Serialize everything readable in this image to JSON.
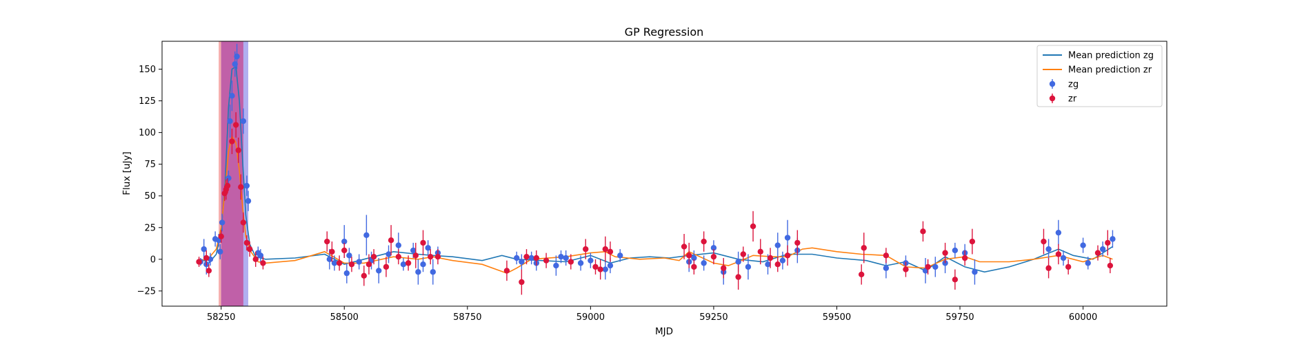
{
  "chart_data": {
    "type": "scatter",
    "title": "GP Regression",
    "xlabel": "MJD",
    "ylabel": "Flux [uJy]",
    "xlim": [
      58130,
      60170
    ],
    "ylim": [
      -37,
      172
    ],
    "xticks": [
      58250,
      58500,
      58750,
      59000,
      59250,
      59500,
      59750,
      60000
    ],
    "yticks": [
      -25,
      0,
      25,
      50,
      75,
      100,
      125,
      150
    ],
    "grid": false,
    "legend_position": "top-right",
    "colors": {
      "zg_line": "#1f77b4",
      "zr_line": "#ff7f0e",
      "zg_points": "#4169e1",
      "zr_points": "#dc143c",
      "band_zr": "#f4a3a3",
      "band_zg": "#a9a6ee",
      "band_overlap": "#c060a8"
    },
    "shaded_regions": [
      {
        "band": "zr",
        "x0": 58245,
        "x1": 58295
      },
      {
        "band": "zg",
        "x0": 58250,
        "x1": 58305
      }
    ],
    "legend": [
      "Mean prediction zg",
      "Mean prediction zr",
      "zg",
      "zr"
    ],
    "series": [
      {
        "name": "Mean prediction zg",
        "kind": "line",
        "points": [
          [
            58210,
            0
          ],
          [
            58225,
            -3
          ],
          [
            58240,
            4
          ],
          [
            58250,
            22
          ],
          [
            58258,
            60
          ],
          [
            58265,
            120
          ],
          [
            58272,
            150
          ],
          [
            58280,
            152
          ],
          [
            58287,
            125
          ],
          [
            58294,
            75
          ],
          [
            58300,
            35
          ],
          [
            58308,
            12
          ],
          [
            58320,
            2
          ],
          [
            58340,
            0
          ],
          [
            58400,
            1
          ],
          [
            58460,
            4
          ],
          [
            58500,
            -4
          ],
          [
            58540,
            0
          ],
          [
            58600,
            6
          ],
          [
            58650,
            4
          ],
          [
            58680,
            3
          ],
          [
            58720,
            2
          ],
          [
            58780,
            -1
          ],
          [
            58820,
            3
          ],
          [
            58850,
            0
          ],
          [
            58900,
            -1
          ],
          [
            58950,
            -2
          ],
          [
            59000,
            3
          ],
          [
            59040,
            -3
          ],
          [
            59080,
            1
          ],
          [
            59120,
            2
          ],
          [
            59160,
            1
          ],
          [
            59200,
            3
          ],
          [
            59250,
            5
          ],
          [
            59300,
            0
          ],
          [
            59350,
            -2
          ],
          [
            59400,
            4
          ],
          [
            59450,
            4
          ],
          [
            59500,
            1
          ],
          [
            59560,
            -1
          ],
          [
            59600,
            -5
          ],
          [
            59640,
            -2
          ],
          [
            59680,
            -9
          ],
          [
            59720,
            2
          ],
          [
            59760,
            -6
          ],
          [
            59800,
            -10
          ],
          [
            59850,
            -6
          ],
          [
            59900,
            0
          ],
          [
            59950,
            8
          ],
          [
            59980,
            3
          ],
          [
            60020,
            0
          ],
          [
            60060,
            10
          ]
        ]
      },
      {
        "name": "Mean prediction zr",
        "kind": "line",
        "points": [
          [
            58210,
            -1
          ],
          [
            58225,
            1
          ],
          [
            58240,
            8
          ],
          [
            58250,
            25
          ],
          [
            58258,
            55
          ],
          [
            58265,
            85
          ],
          [
            58272,
            97
          ],
          [
            58280,
            92
          ],
          [
            58287,
            70
          ],
          [
            58294,
            40
          ],
          [
            58300,
            18
          ],
          [
            58310,
            6
          ],
          [
            58325,
            -2
          ],
          [
            58340,
            -3
          ],
          [
            58400,
            -1
          ],
          [
            58460,
            6
          ],
          [
            58500,
            -3
          ],
          [
            58540,
            -3
          ],
          [
            58600,
            2
          ],
          [
            58650,
            0
          ],
          [
            58680,
            2
          ],
          [
            58720,
            -1
          ],
          [
            58780,
            -4
          ],
          [
            58830,
            -11
          ],
          [
            58850,
            -7
          ],
          [
            58880,
            0
          ],
          [
            58950,
            2
          ],
          [
            59000,
            5
          ],
          [
            59030,
            6
          ],
          [
            59050,
            2
          ],
          [
            59100,
            0
          ],
          [
            59150,
            1
          ],
          [
            59180,
            -1
          ],
          [
            59200,
            6
          ],
          [
            59250,
            -3
          ],
          [
            59280,
            -5
          ],
          [
            59300,
            -2
          ],
          [
            59330,
            3
          ],
          [
            59370,
            2
          ],
          [
            59400,
            2
          ],
          [
            59430,
            8
          ],
          [
            59450,
            9
          ],
          [
            59500,
            6
          ],
          [
            59550,
            4
          ],
          [
            59600,
            3
          ],
          [
            59640,
            -6
          ],
          [
            59680,
            -7
          ],
          [
            59720,
            0
          ],
          [
            59760,
            2
          ],
          [
            59790,
            -2
          ],
          [
            59850,
            -2
          ],
          [
            59900,
            0
          ],
          [
            59950,
            3
          ],
          [
            60000,
            -2
          ],
          [
            60040,
            3
          ],
          [
            60060,
            0
          ]
        ]
      },
      {
        "name": "zg",
        "kind": "errorbar",
        "points": [
          [
            58208,
            -2,
            3
          ],
          [
            58215,
            8,
            8
          ],
          [
            58220,
            -4,
            8
          ],
          [
            58228,
            0,
            5
          ],
          [
            58238,
            16,
            6
          ],
          [
            58245,
            15,
            5
          ],
          [
            58248,
            6,
            6
          ],
          [
            58252,
            29,
            7
          ],
          [
            58265,
            64,
            6
          ],
          [
            58268,
            109,
            13
          ],
          [
            58272,
            129,
            12
          ],
          [
            58278,
            154,
            10
          ],
          [
            58282,
            160,
            10
          ],
          [
            58295,
            109,
            10
          ],
          [
            58302,
            58,
            8
          ],
          [
            58305,
            46,
            8
          ],
          [
            58325,
            5,
            5
          ],
          [
            58330,
            3,
            5
          ],
          [
            58470,
            0,
            8
          ],
          [
            58480,
            -3,
            6
          ],
          [
            58500,
            14,
            13
          ],
          [
            58505,
            -11,
            8
          ],
          [
            58510,
            3,
            6
          ],
          [
            58530,
            -2,
            6
          ],
          [
            58545,
            19,
            16
          ],
          [
            58555,
            -1,
            7
          ],
          [
            58570,
            -9,
            10
          ],
          [
            58590,
            4,
            7
          ],
          [
            58610,
            11,
            10
          ],
          [
            58620,
            -4,
            5
          ],
          [
            58640,
            7,
            6
          ],
          [
            58650,
            -10,
            10
          ],
          [
            58660,
            -4,
            6
          ],
          [
            58670,
            9,
            6
          ],
          [
            58680,
            -10,
            10
          ],
          [
            58690,
            5,
            5
          ],
          [
            58850,
            1,
            5
          ],
          [
            58860,
            -2,
            6
          ],
          [
            58880,
            1,
            5
          ],
          [
            58890,
            -3,
            6
          ],
          [
            58930,
            -5,
            8
          ],
          [
            58940,
            2,
            5
          ],
          [
            58950,
            1,
            6
          ],
          [
            58980,
            -3,
            6
          ],
          [
            59000,
            -1,
            6
          ],
          [
            59030,
            -8,
            8
          ],
          [
            59040,
            -5,
            6
          ],
          [
            59060,
            3,
            5
          ],
          [
            59200,
            -2,
            8
          ],
          [
            59210,
            1,
            6
          ],
          [
            59230,
            -3,
            6
          ],
          [
            59250,
            9,
            6
          ],
          [
            59270,
            -10,
            10
          ],
          [
            59300,
            -2,
            8
          ],
          [
            59320,
            -6,
            10
          ],
          [
            59360,
            -4,
            8
          ],
          [
            59380,
            11,
            10
          ],
          [
            59390,
            -1,
            7
          ],
          [
            59400,
            17,
            14
          ],
          [
            59420,
            7,
            10
          ],
          [
            59600,
            -7,
            8
          ],
          [
            59640,
            -3,
            6
          ],
          [
            59680,
            -9,
            10
          ],
          [
            59700,
            -6,
            8
          ],
          [
            59720,
            -3,
            8
          ],
          [
            59740,
            7,
            6
          ],
          [
            59760,
            5,
            7
          ],
          [
            59780,
            -10,
            10
          ],
          [
            59930,
            8,
            8
          ],
          [
            59950,
            21,
            10
          ],
          [
            59960,
            1,
            6
          ],
          [
            60000,
            11,
            6
          ],
          [
            60010,
            -3,
            5
          ],
          [
            60040,
            8,
            6
          ],
          [
            60060,
            16,
            7
          ]
        ]
      },
      {
        "name": "zr",
        "kind": "errorbar",
        "points": [
          [
            58205,
            -2,
            4
          ],
          [
            58220,
            1,
            6
          ],
          [
            58225,
            -9,
            5
          ],
          [
            58250,
            18,
            5
          ],
          [
            58257,
            52,
            6
          ],
          [
            58260,
            55,
            8
          ],
          [
            58263,
            58,
            6
          ],
          [
            58272,
            93,
            10
          ],
          [
            58280,
            106,
            10
          ],
          [
            58285,
            86,
            10
          ],
          [
            58290,
            57,
            10
          ],
          [
            58295,
            29,
            8
          ],
          [
            58302,
            13,
            6
          ],
          [
            58308,
            8,
            6
          ],
          [
            58320,
            0,
            6
          ],
          [
            58335,
            -3,
            5
          ],
          [
            58465,
            14,
            8
          ],
          [
            58475,
            6,
            8
          ],
          [
            58490,
            -3,
            6
          ],
          [
            58500,
            7,
            6
          ],
          [
            58515,
            -4,
            6
          ],
          [
            58540,
            -13,
            8
          ],
          [
            58550,
            -4,
            8
          ],
          [
            58560,
            2,
            6
          ],
          [
            58585,
            -6,
            8
          ],
          [
            58595,
            15,
            12
          ],
          [
            58610,
            2,
            6
          ],
          [
            58630,
            -3,
            6
          ],
          [
            58645,
            3,
            10
          ],
          [
            58660,
            13,
            10
          ],
          [
            58675,
            2,
            6
          ],
          [
            58690,
            2,
            6
          ],
          [
            58830,
            -9,
            8
          ],
          [
            58860,
            -18,
            10
          ],
          [
            58870,
            2,
            6
          ],
          [
            58890,
            1,
            6
          ],
          [
            58910,
            -1,
            6
          ],
          [
            58960,
            -2,
            6
          ],
          [
            58990,
            8,
            8
          ],
          [
            59010,
            -6,
            6
          ],
          [
            59020,
            -8,
            8
          ],
          [
            59030,
            8,
            10
          ],
          [
            59040,
            6,
            8
          ],
          [
            59190,
            10,
            10
          ],
          [
            59200,
            3,
            10
          ],
          [
            59210,
            -6,
            6
          ],
          [
            59230,
            14,
            8
          ],
          [
            59250,
            2,
            6
          ],
          [
            59270,
            -7,
            8
          ],
          [
            59300,
            -14,
            10
          ],
          [
            59310,
            4,
            6
          ],
          [
            59330,
            26,
            12
          ],
          [
            59345,
            6,
            10
          ],
          [
            59365,
            1,
            8
          ],
          [
            59380,
            -4,
            6
          ],
          [
            59400,
            3,
            8
          ],
          [
            59420,
            13,
            10
          ],
          [
            59550,
            -12,
            8
          ],
          [
            59555,
            9,
            12
          ],
          [
            59600,
            3,
            6
          ],
          [
            59640,
            -8,
            6
          ],
          [
            59675,
            22,
            8
          ],
          [
            59685,
            -6,
            6
          ],
          [
            59720,
            5,
            8
          ],
          [
            59740,
            -16,
            8
          ],
          [
            59760,
            1,
            6
          ],
          [
            59775,
            14,
            10
          ],
          [
            59920,
            14,
            10
          ],
          [
            59930,
            -7,
            8
          ],
          [
            59950,
            4,
            8
          ],
          [
            59970,
            -6,
            6
          ],
          [
            60030,
            5,
            6
          ],
          [
            60050,
            13,
            10
          ],
          [
            60055,
            -5,
            6
          ]
        ]
      }
    ]
  }
}
